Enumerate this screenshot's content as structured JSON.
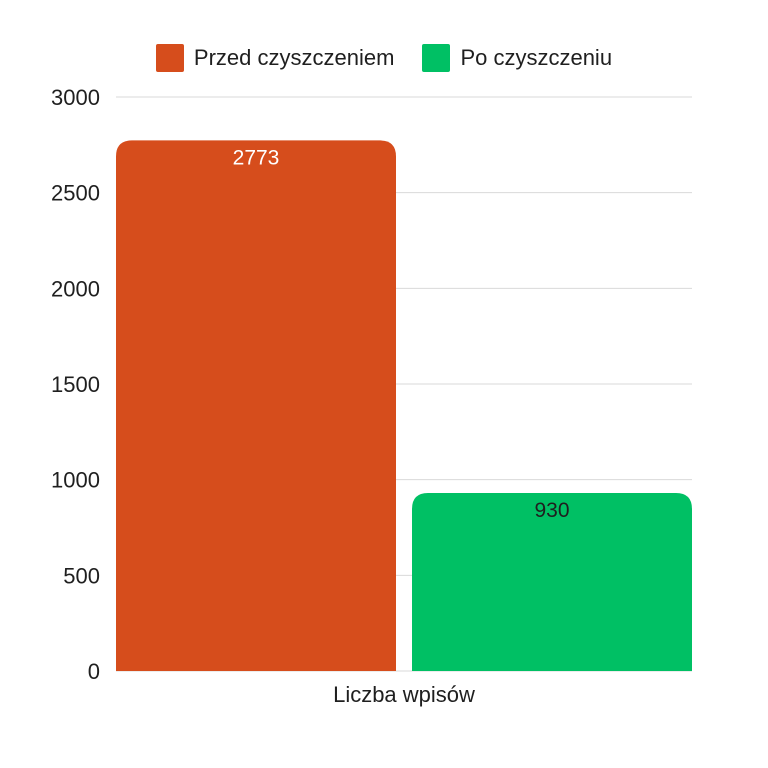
{
  "chart_data": {
    "type": "bar",
    "categories": [
      "Liczba wpisów"
    ],
    "series": [
      {
        "name": "Przed czyszczeniem",
        "values": [
          2773
        ],
        "color": "#d64d1c",
        "label_color": "#ffffff"
      },
      {
        "name": "Po czyszczeniu",
        "values": [
          930
        ],
        "color": "#00c064",
        "label_color": "#1f1f1f"
      }
    ],
    "yticks": [
      "0",
      "500",
      "1000",
      "1500",
      "2000",
      "2500",
      "3000"
    ],
    "ylim": [
      0,
      3000
    ],
    "xlabel": "",
    "ylabel": "",
    "grid": true,
    "legend_position": "top-center"
  }
}
